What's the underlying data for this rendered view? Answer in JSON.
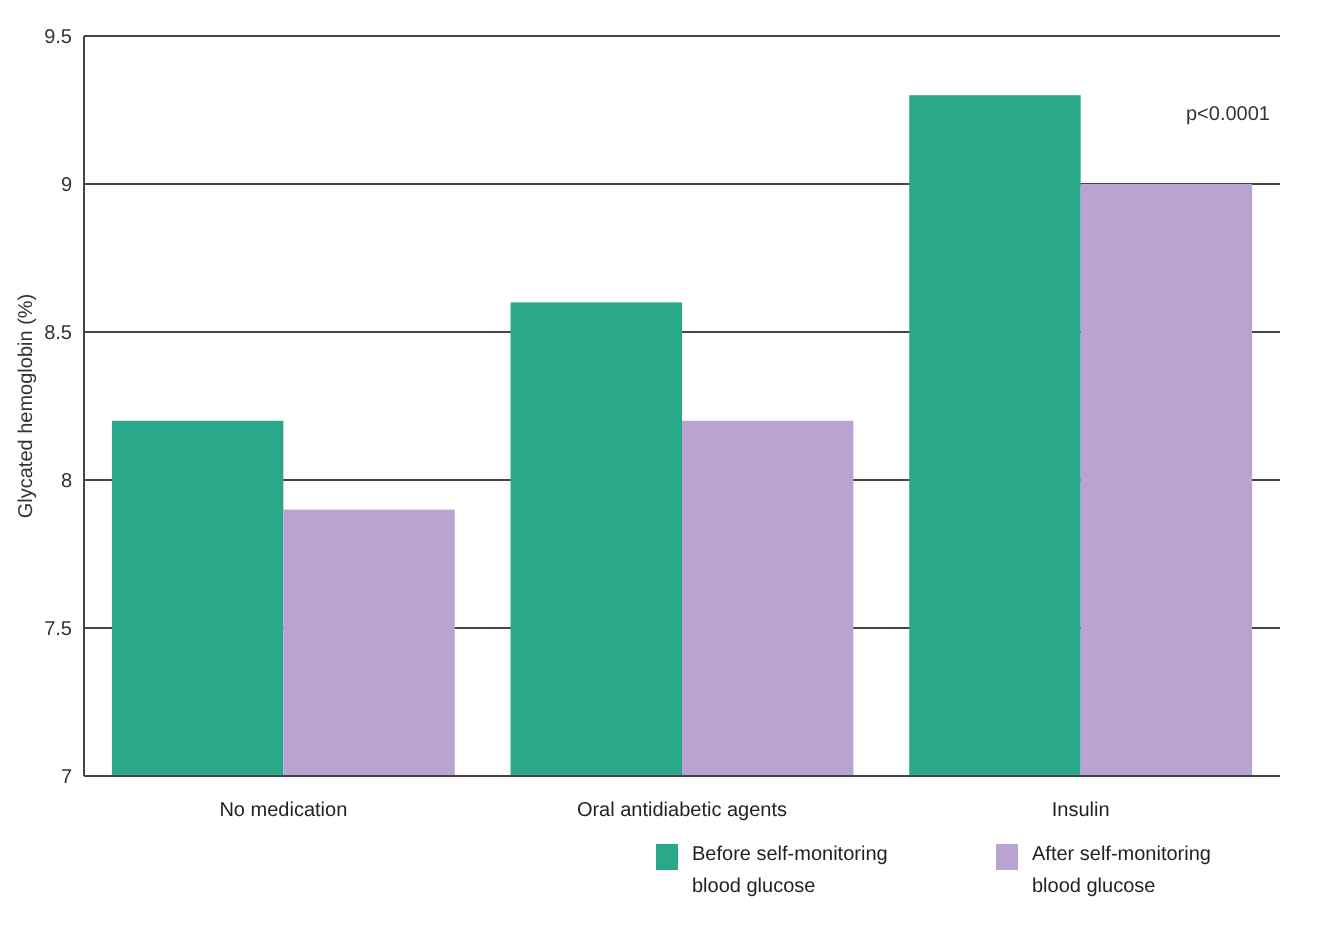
{
  "chart_data": {
    "type": "bar",
    "ylabel": "Glycated hemoglobin (%)",
    "categories": [
      "No medication",
      "Oral antidiabetic agents",
      "Insulin"
    ],
    "series": [
      {
        "name": "Before self-monitoring blood glucose",
        "color": "#2aa88a",
        "values": [
          8.2,
          8.6,
          9.3
        ]
      },
      {
        "name": "After self-monitoring blood glucose",
        "color": "#b9a3d0",
        "values": [
          7.9,
          8.2,
          9.0
        ]
      }
    ],
    "ylim": [
      7,
      9.5
    ],
    "yticks": [
      7,
      7.5,
      8,
      8.5,
      9,
      9.5
    ],
    "grid": "y",
    "legend": "bottom right",
    "annotations": [
      "p<0.0001"
    ]
  }
}
